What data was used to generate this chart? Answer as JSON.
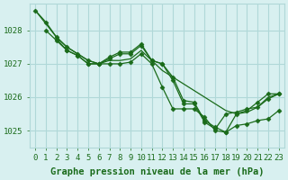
{
  "background_color": "#d8f0f0",
  "grid_color": "#b0d8d8",
  "line_color": "#1a6b1a",
  "xlabel": "Graphe pression niveau de la mer (hPa)",
  "xlabel_fontsize": 7.5,
  "tick_fontsize": 6.5,
  "ytick_labels": [
    1025,
    1026,
    1027,
    1028
  ],
  "ylim": [
    1024.5,
    1028.8
  ],
  "xlim": [
    -0.5,
    23.5
  ],
  "xtick_labels": [
    0,
    1,
    2,
    3,
    4,
    5,
    6,
    7,
    8,
    9,
    10,
    11,
    12,
    13,
    14,
    15,
    16,
    17,
    18,
    19,
    20,
    21,
    22,
    23
  ],
  "curves": [
    {
      "x": [
        0,
        1,
        2,
        3,
        4,
        5,
        6,
        7,
        8,
        9,
        10,
        11,
        12,
        13,
        14,
        15,
        16,
        17,
        18,
        19,
        20,
        21,
        22,
        23
      ],
      "y": [
        1028.6,
        1028.2,
        1027.8,
        1027.5,
        1027.3,
        1027.1,
        1027.0,
        1027.1,
        1027.1,
        1027.15,
        1027.4,
        1027.1,
        1026.8,
        1026.6,
        1026.4,
        1026.2,
        1026.0,
        1025.8,
        1025.6,
        1025.5,
        1025.55,
        1025.7,
        1026.0,
        1026.1
      ],
      "has_marker": false
    },
    {
      "x": [
        1,
        2,
        3,
        4,
        5,
        6,
        7,
        8,
        9,
        10,
        11,
        12,
        13,
        14,
        15,
        16,
        17,
        18,
        19,
        20,
        21,
        22,
        23
      ],
      "y": [
        1028.0,
        1027.7,
        1027.4,
        1027.25,
        1027.0,
        1027.0,
        1027.15,
        1027.3,
        1027.3,
        1027.55,
        1027.1,
        1027.0,
        1026.5,
        1025.8,
        1025.8,
        1025.25,
        1025.05,
        1025.5,
        1025.55,
        1025.65,
        1025.7,
        1025.95,
        1026.1
      ],
      "has_marker": true
    },
    {
      "x": [
        2,
        3,
        4,
        5,
        6,
        7,
        8,
        9,
        10,
        11,
        12,
        13,
        14,
        15,
        16,
        17,
        18,
        19,
        20,
        21,
        22,
        23
      ],
      "y": [
        1027.75,
        1027.4,
        1027.25,
        1027.0,
        1027.0,
        1027.2,
        1027.35,
        1027.35,
        1027.6,
        1027.1,
        1027.0,
        1026.6,
        1025.9,
        1025.85,
        1025.3,
        1025.1,
        1024.95,
        1025.15,
        1025.2,
        1025.3,
        1025.35,
        1025.6
      ],
      "has_marker": true
    },
    {
      "x": [
        0,
        1,
        2,
        3,
        4,
        5,
        6,
        7,
        8,
        9,
        10,
        11,
        12,
        13,
        14,
        15,
        16,
        17,
        18,
        19,
        20,
        21,
        22,
        23
      ],
      "y": [
        1028.6,
        1028.25,
        1027.8,
        1027.5,
        1027.3,
        1027.1,
        1027.0,
        1027.0,
        1027.0,
        1027.05,
        1027.3,
        1027.0,
        1026.3,
        1025.65,
        1025.65,
        1025.65,
        1025.4,
        1025.0,
        1024.95,
        1025.5,
        1025.6,
        1025.85,
        1026.1,
        1026.1
      ],
      "has_marker": true
    }
  ]
}
